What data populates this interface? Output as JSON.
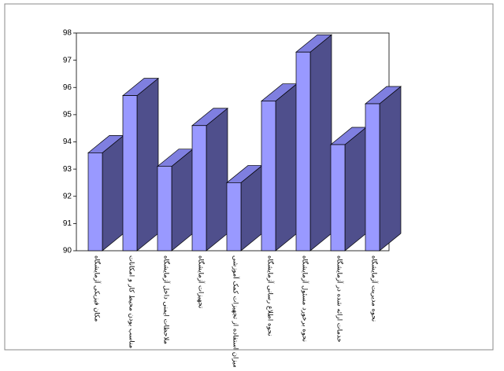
{
  "chart_data": {
    "type": "bar3d",
    "categories": [
      "مکان فیزیکی آزمایشگاه",
      "مناسب بودن محیط کار و امکانات",
      "ملاحظات ایمنی داخل آزمایشگاه",
      "تجهیزات آزمایشگاه",
      "میزان استفاده از تجهیزات کمک آموزشی",
      "نحوه اطلاع رسانی آزمایشگاه",
      "نحوه برخورد مسئول آزمایشگاه",
      "خدمات ارائه شده در آزمایشگاه",
      "نحوه مدیریت آزمایشگاه"
    ],
    "values": [
      93.6,
      95.7,
      93.1,
      94.6,
      92.5,
      95.5,
      97.3,
      93.9,
      95.4
    ],
    "color": "#9999ff",
    "side_color": "#4f4f8c",
    "top_color": "#7f7fe0",
    "ylim": [
      90,
      98
    ],
    "yticks": [
      90,
      91,
      92,
      93,
      94,
      95,
      96,
      97,
      98
    ]
  }
}
